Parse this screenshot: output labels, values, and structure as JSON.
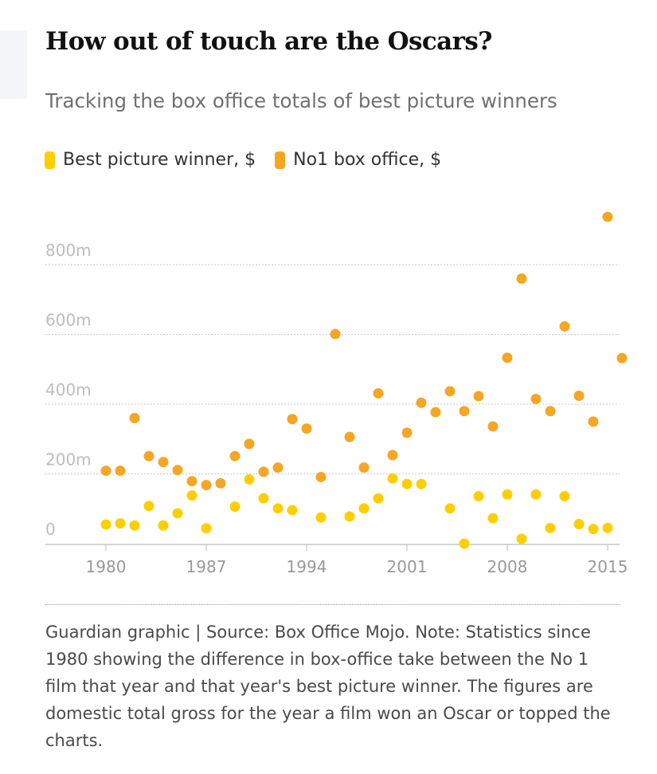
{
  "header": {
    "title": "How out of touch are the Oscars?",
    "subtitle": "Tracking the box office totals of best picture winners"
  },
  "legend": {
    "items": [
      {
        "label": "Best picture winner, $",
        "color": "#ffce00"
      },
      {
        "label": "No1 box office, $",
        "color": "#f5a623"
      }
    ]
  },
  "chart_data": {
    "type": "scatter",
    "title": "How out of touch are the Oscars?",
    "subtitle": "Tracking the box office totals of best picture winners",
    "xlabel": "",
    "ylabel": "",
    "xlim": [
      1979,
      2017
    ],
    "ylim": [
      0,
      900
    ],
    "x_ticks": [
      1980,
      1987,
      1994,
      2001,
      2008,
      2015
    ],
    "y_ticks": [
      0,
      200,
      400,
      600,
      800
    ],
    "y_tick_labels": [
      "0",
      "200m",
      "400m",
      "600m",
      "800m"
    ],
    "grid": true,
    "legend_position": "top-left",
    "series": [
      {
        "name": "Best picture winner, $",
        "color": "#ffce00",
        "points": [
          {
            "x": 1980,
            "y": 55
          },
          {
            "x": 1981,
            "y": 58
          },
          {
            "x": 1982,
            "y": 52
          },
          {
            "x": 1983,
            "y": 108
          },
          {
            "x": 1984,
            "y": 52
          },
          {
            "x": 1985,
            "y": 87
          },
          {
            "x": 1986,
            "y": 138
          },
          {
            "x": 1987,
            "y": 44
          },
          {
            "x": 1989,
            "y": 106
          },
          {
            "x": 1990,
            "y": 184
          },
          {
            "x": 1991,
            "y": 130
          },
          {
            "x": 1992,
            "y": 101
          },
          {
            "x": 1993,
            "y": 96
          },
          {
            "x": 1995,
            "y": 75
          },
          {
            "x": 1997,
            "y": 78
          },
          {
            "x": 1998,
            "y": 101
          },
          {
            "x": 1999,
            "y": 130
          },
          {
            "x": 2000,
            "y": 187
          },
          {
            "x": 2001,
            "y": 171
          },
          {
            "x": 2002,
            "y": 171
          },
          {
            "x": 2004,
            "y": 101
          },
          {
            "x": 2005,
            "y": 0
          },
          {
            "x": 2006,
            "y": 136
          },
          {
            "x": 2007,
            "y": 73
          },
          {
            "x": 2008,
            "y": 141
          },
          {
            "x": 2009,
            "y": 14
          },
          {
            "x": 2010,
            "y": 141
          },
          {
            "x": 2011,
            "y": 45
          },
          {
            "x": 2012,
            "y": 136
          },
          {
            "x": 2013,
            "y": 56
          },
          {
            "x": 2014,
            "y": 42
          },
          {
            "x": 2015,
            "y": 45
          }
        ]
      },
      {
        "name": "No1 box office, $",
        "color": "#f5a623",
        "points": [
          {
            "x": 1980,
            "y": 209
          },
          {
            "x": 1981,
            "y": 209
          },
          {
            "x": 1982,
            "y": 360
          },
          {
            "x": 1983,
            "y": 251
          },
          {
            "x": 1984,
            "y": 234
          },
          {
            "x": 1985,
            "y": 211
          },
          {
            "x": 1986,
            "y": 179
          },
          {
            "x": 1987,
            "y": 168
          },
          {
            "x": 1988,
            "y": 173
          },
          {
            "x": 1989,
            "y": 251
          },
          {
            "x": 1990,
            "y": 286
          },
          {
            "x": 1991,
            "y": 206
          },
          {
            "x": 1992,
            "y": 218
          },
          {
            "x": 1993,
            "y": 357
          },
          {
            "x": 1994,
            "y": 330
          },
          {
            "x": 1995,
            "y": 191
          },
          {
            "x": 1996,
            "y": 601
          },
          {
            "x": 1997,
            "y": 306
          },
          {
            "x": 1998,
            "y": 218
          },
          {
            "x": 1999,
            "y": 431
          },
          {
            "x": 2000,
            "y": 254
          },
          {
            "x": 2001,
            "y": 318
          },
          {
            "x": 2002,
            "y": 404
          },
          {
            "x": 2003,
            "y": 377
          },
          {
            "x": 2004,
            "y": 437
          },
          {
            "x": 2005,
            "y": 380
          },
          {
            "x": 2006,
            "y": 423
          },
          {
            "x": 2007,
            "y": 336
          },
          {
            "x": 2008,
            "y": 533
          },
          {
            "x": 2009,
            "y": 760
          },
          {
            "x": 2010,
            "y": 415
          },
          {
            "x": 2011,
            "y": 380
          },
          {
            "x": 2012,
            "y": 623
          },
          {
            "x": 2013,
            "y": 424
          },
          {
            "x": 2014,
            "y": 350
          },
          {
            "x": 2015,
            "y": 937
          },
          {
            "x": 2016,
            "y": 532
          }
        ]
      }
    ]
  },
  "footer": {
    "note": "Guardian graphic | Source: Box Office Mojo. Note: Statistics since 1980 showing the difference in box-office take between the No 1 film that year and that year's best picture winner. The figures are domestic total gross for the year a film won an Oscar or topped the charts."
  }
}
